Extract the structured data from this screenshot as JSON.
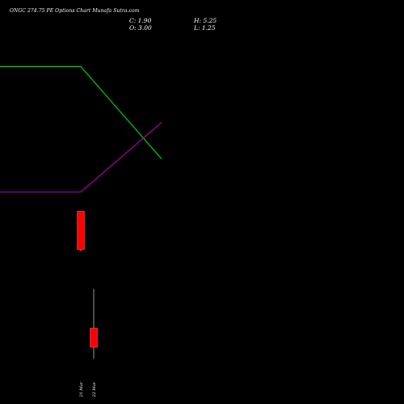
{
  "header": {
    "title": "ONGC 274.75 PE Options  Chart Munafa Sutra.com",
    "close_label": "C: 1.90",
    "open_label": "O: 3.00",
    "high_label": "H: 5.25",
    "low_label": "L: 1.25"
  },
  "colors": {
    "background": "#000000",
    "upper_line": "#00cc00",
    "lower_line": "#aa00aa",
    "down_candle": "#ff0000",
    "wick": "#bbbbbb"
  },
  "chart_data": {
    "type": "candlestick",
    "title": "ONGC 274.75 PE Options  Chart Munafa Sutra.com",
    "categories": [
      "21 Mar",
      "22 Mar"
    ],
    "tick_labels": [
      "21 Mar",
      "22 Mar"
    ],
    "candles": [
      {
        "date": "21 Mar",
        "open": 9.7,
        "high": 9.7,
        "low": 7.4,
        "close": 7.5,
        "color": "red"
      },
      {
        "date": "22 Mar",
        "open": 3.0,
        "high": 5.25,
        "low": 1.25,
        "close": 1.9,
        "color": "red"
      }
    ],
    "ylim": [
      0.5,
      19.5
    ],
    "overlays": [
      {
        "color": "green",
        "x": [
          "",
          "",
          "21 Mar",
          "22 Mar"
        ],
        "values": [
          18.0,
          18.0,
          18.0,
          12.7
        ]
      },
      {
        "color": "purple",
        "x": [
          "",
          "",
          "21 Mar",
          "22 Mar"
        ],
        "values": [
          10.8,
          10.8,
          10.8,
          14.8
        ]
      }
    ],
    "grid": false,
    "legend": "none"
  }
}
